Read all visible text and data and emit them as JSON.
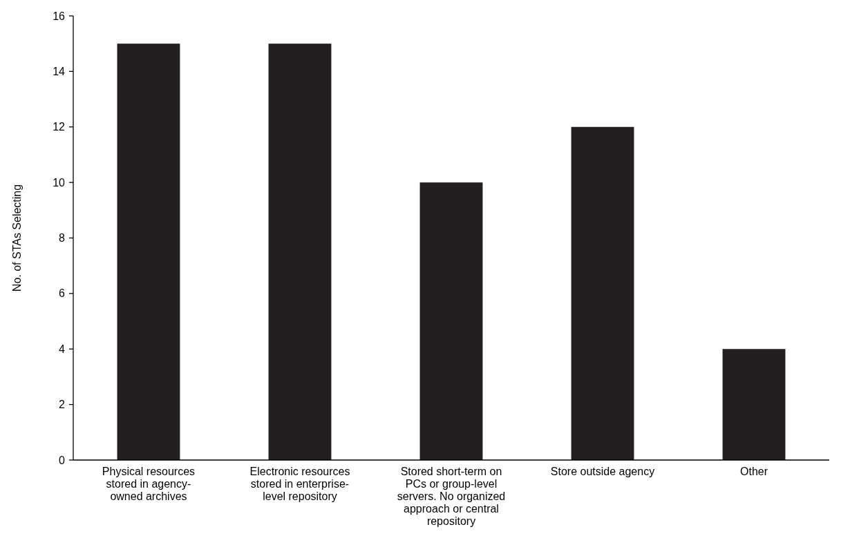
{
  "chart_data": {
    "type": "bar",
    "ylabel": "No. of STAs Selecting",
    "categories": [
      "Physical resources stored in agency-owned archives",
      "Electronic resources stored in enterprise-level repository",
      "Stored short-term on PCs or group-level servers. No organized approach or central repository",
      "Store outside agency",
      "Other"
    ],
    "values": [
      15,
      15,
      10,
      12,
      4
    ],
    "color": "#231f20",
    "ylim": [
      0,
      16
    ],
    "yticks": [
      0,
      2,
      4,
      6,
      8,
      10,
      12,
      14,
      16
    ],
    "grid": false
  }
}
